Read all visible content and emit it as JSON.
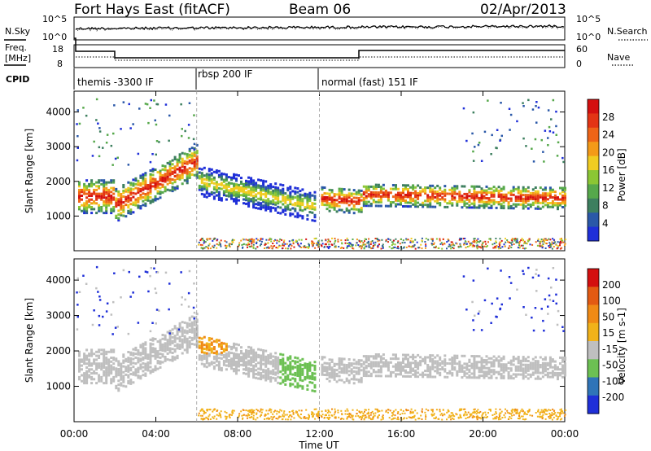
{
  "header": {
    "title": "Fort Hays East (fitACF)",
    "beam": "Beam 06",
    "date": "02/Apr/2013"
  },
  "top_strip": {
    "left_label": "N.Sky",
    "right_label": "N.Search",
    "left_ticks": [
      "10^5",
      "10^0"
    ],
    "right_ticks": [
      "10^5",
      "10^0"
    ]
  },
  "freq_strip": {
    "left_label_line1": "Freq.",
    "left_label_line2": "[MHz]",
    "right_label": "Nave",
    "left_ticks": [
      "18",
      "8"
    ],
    "right_ticks": [
      "60",
      "0"
    ]
  },
  "cpid": {
    "label": "CPID",
    "segments": [
      {
        "label": "themis -3300 IF",
        "start": 0,
        "end": 6
      },
      {
        "label": "rbsp 200 IF",
        "start": 6,
        "end": 12
      },
      {
        "label": "normal (fast) 151 IF",
        "start": 12,
        "end": 24
      }
    ]
  },
  "colors": {
    "power_scale": [
      "#1f2fd8",
      "#2a58a8",
      "#3d7f5f",
      "#56a84b",
      "#8bc634",
      "#f0cc21",
      "#f39a18",
      "#ee6417",
      "#e33414",
      "#d40f0f"
    ],
    "velocity_scale": [
      "#1f2fd8",
      "#2f74b8",
      "#6cc053",
      "#bfbfbf",
      "#f1b21a",
      "#f08a15",
      "#e35a12",
      "#d40f0f"
    ]
  },
  "chart_data": [
    {
      "type": "heatmap",
      "title": "",
      "xlabel": "Time UT",
      "ylabel": "Slant Range [km]",
      "xlim": [
        0,
        24
      ],
      "ylim": [
        0,
        4600
      ],
      "xticks": [
        "00:00",
        "04:00",
        "08:00",
        "12:00",
        "16:00",
        "20:00",
        "00:00"
      ],
      "yticks": [
        1000,
        2000,
        3000,
        4000
      ],
      "colorbar": {
        "label": "Power [dB]",
        "ticks": [
          4,
          8,
          12,
          16,
          20,
          24,
          28
        ],
        "range": [
          0,
          30
        ]
      },
      "echo_regions": [
        {
          "t_start": 0,
          "t_end": 2,
          "range_center": 1550,
          "range_width": 600
        },
        {
          "t_start": 2,
          "t_end": 6,
          "range_center": 1900,
          "range_width": 700
        },
        {
          "t_start": 6,
          "t_end": 11.8,
          "range_center": 1700,
          "range_width": 800
        },
        {
          "t_start": 12,
          "t_end": 14,
          "range_center": 1450,
          "range_width": 500
        },
        {
          "t_start": 14,
          "t_end": 24,
          "range_center": 1550,
          "range_width": 450
        }
      ]
    },
    {
      "type": "heatmap",
      "title": "",
      "xlabel": "Time UT",
      "ylabel": "Slant Range [km]",
      "xlim": [
        0,
        24
      ],
      "ylim": [
        0,
        4600
      ],
      "xticks": [
        "00:00",
        "04:00",
        "08:00",
        "12:00",
        "16:00",
        "20:00",
        "00:00"
      ],
      "yticks": [
        1000,
        2000,
        3000,
        4000
      ],
      "colorbar": {
        "label": "Velocity [m s-1]",
        "ticks": [
          200,
          100,
          50,
          15,
          -15,
          -50,
          -100,
          -200
        ]
      }
    }
  ]
}
